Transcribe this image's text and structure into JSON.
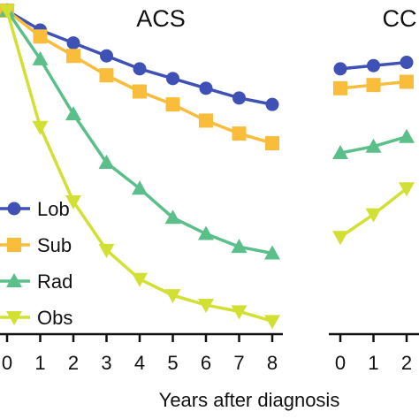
{
  "chart_data": [
    {
      "type": "line",
      "title": "ACS",
      "xlabel": "Years after diagnosis",
      "x": [
        0,
        1,
        2,
        3,
        4,
        5,
        6,
        7,
        8
      ],
      "ylim": [
        0,
        100
      ],
      "series": [
        {
          "name": "Lob",
          "color": "#3f51b5",
          "marker": "circle",
          "values": [
            100,
            94,
            90,
            86,
            82,
            79,
            76,
            73,
            71
          ]
        },
        {
          "name": "Sub",
          "color": "#f9bc3b",
          "marker": "square",
          "values": [
            100,
            92,
            86,
            80,
            75,
            71,
            66,
            62,
            59
          ]
        },
        {
          "name": "Rad",
          "color": "#5bbf8a",
          "marker": "triangle",
          "values": [
            100,
            85,
            68,
            53,
            45,
            36,
            31,
            27,
            25
          ]
        },
        {
          "name": "Obs",
          "color": "#d2e033",
          "marker": "triangle-down",
          "values": [
            100,
            64,
            41,
            26,
            17,
            12,
            9,
            7,
            4
          ]
        }
      ]
    },
    {
      "type": "line",
      "title": "CC",
      "xlabel": "Years after diagnosis",
      "x": [
        0,
        1,
        2
      ],
      "ylim": [
        0,
        100
      ],
      "series": [
        {
          "name": "Lob",
          "color": "#3f51b5",
          "marker": "circle",
          "values": [
            82,
            83,
            84
          ]
        },
        {
          "name": "Sub",
          "color": "#f9bc3b",
          "marker": "square",
          "values": [
            76,
            77,
            78
          ]
        },
        {
          "name": "Rad",
          "color": "#5bbf8a",
          "marker": "triangle",
          "values": [
            56,
            58,
            61
          ]
        },
        {
          "name": "Obs",
          "color": "#d2e033",
          "marker": "triangle-down",
          "values": [
            30,
            37,
            45
          ]
        }
      ]
    }
  ],
  "xaxis": {
    "title": "Years after diagnosis"
  }
}
